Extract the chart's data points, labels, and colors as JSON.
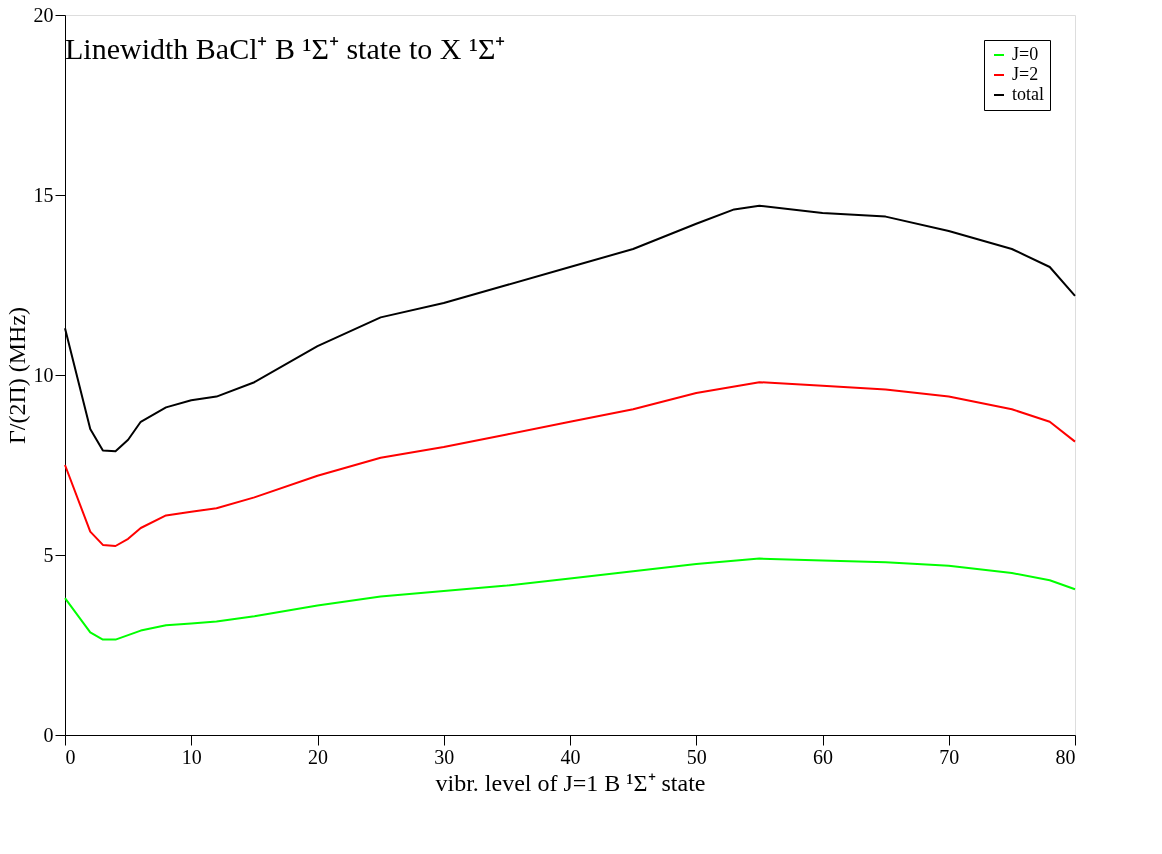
{
  "chart_data": {
    "type": "line",
    "title": "Linewidth BaCl⁺ B ¹Σ⁺ state to X ¹Σ⁺",
    "xlabel": "vibr. level of J=1 B ¹Σ⁺ state",
    "ylabel": "Γ/(2Π) (MHz)",
    "xlim": [
      0,
      80
    ],
    "ylim": [
      0,
      20
    ],
    "xticks": [
      0,
      10,
      20,
      30,
      40,
      50,
      60,
      70,
      80
    ],
    "yticks": [
      0,
      5,
      10,
      15,
      20
    ],
    "grid": false,
    "legend": "top right",
    "marker": "none",
    "line_style": "solid",
    "series": [
      {
        "name": "J=0",
        "color": "#00ff00",
        "x": [
          0,
          2,
          3,
          4,
          6,
          8,
          10,
          12,
          15,
          20,
          25,
          30,
          35,
          40,
          45,
          50,
          55,
          60,
          65,
          70,
          75,
          78,
          80
        ],
        "values": [
          3.8,
          2.85,
          2.65,
          2.65,
          2.9,
          3.05,
          3.1,
          3.15,
          3.3,
          3.6,
          3.85,
          4.0,
          4.15,
          4.35,
          4.55,
          4.75,
          4.9,
          4.85,
          4.8,
          4.7,
          4.5,
          4.3,
          4.05
        ]
      },
      {
        "name": "J=2",
        "color": "#ff0000",
        "x": [
          0,
          2,
          3,
          4,
          5,
          6,
          8,
          10,
          12,
          15,
          20,
          25,
          30,
          35,
          40,
          45,
          50,
          55,
          60,
          65,
          70,
          75,
          78,
          80
        ],
        "values": [
          7.5,
          5.65,
          5.28,
          5.25,
          5.45,
          5.75,
          6.1,
          6.2,
          6.3,
          6.6,
          7.2,
          7.7,
          8.0,
          8.35,
          8.7,
          9.05,
          9.5,
          9.8,
          9.7,
          9.6,
          9.4,
          9.05,
          8.7,
          8.15
        ]
      },
      {
        "name": "total",
        "color": "#000000",
        "x": [
          0,
          2,
          3,
          4,
          5,
          6,
          8,
          10,
          12,
          15,
          20,
          25,
          30,
          35,
          40,
          45,
          50,
          53,
          55,
          60,
          65,
          70,
          75,
          78,
          80
        ],
        "values": [
          11.3,
          8.5,
          7.9,
          7.88,
          8.2,
          8.7,
          9.1,
          9.3,
          9.4,
          9.8,
          10.8,
          11.6,
          12.0,
          12.5,
          13.0,
          13.5,
          14.2,
          14.6,
          14.7,
          14.5,
          14.4,
          14.0,
          13.5,
          13.0,
          12.2
        ]
      }
    ]
  }
}
